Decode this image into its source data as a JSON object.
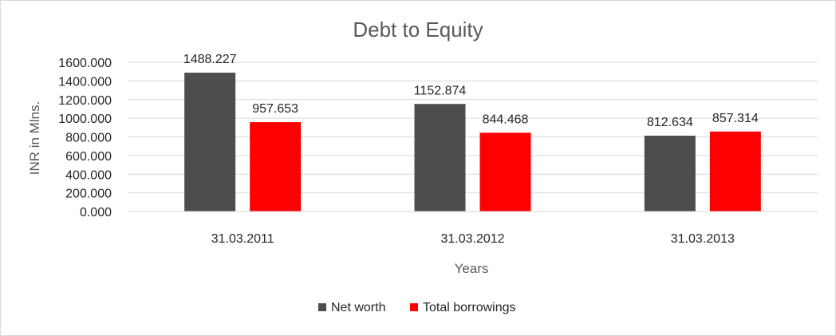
{
  "chart_data": {
    "type": "bar",
    "title": "Debt to Equity",
    "xlabel": "Years",
    "ylabel": "INR in Mlns.",
    "categories": [
      "31.03.2011",
      "31.03.2012",
      "31.03.2013"
    ],
    "series": [
      {
        "name": "Net worth",
        "values": [
          1488.227,
          1152.874,
          812.634
        ],
        "labels": [
          "1488.227",
          "1152.874",
          "812.634"
        ],
        "color": "#4d4d4d"
      },
      {
        "name": "Total borrowings",
        "values": [
          957.653,
          844.468,
          857.314
        ],
        "labels": [
          "957.653",
          "844.468",
          "857.314"
        ],
        "color": "#ff0000"
      }
    ],
    "ylim": [
      0,
      1600
    ],
    "yticks": [
      "0.000",
      "200.000",
      "400.000",
      "600.000",
      "800.000",
      "1000.000",
      "1200.000",
      "1400.000",
      "1600.000"
    ],
    "grid": true,
    "legend_position": "bottom"
  }
}
